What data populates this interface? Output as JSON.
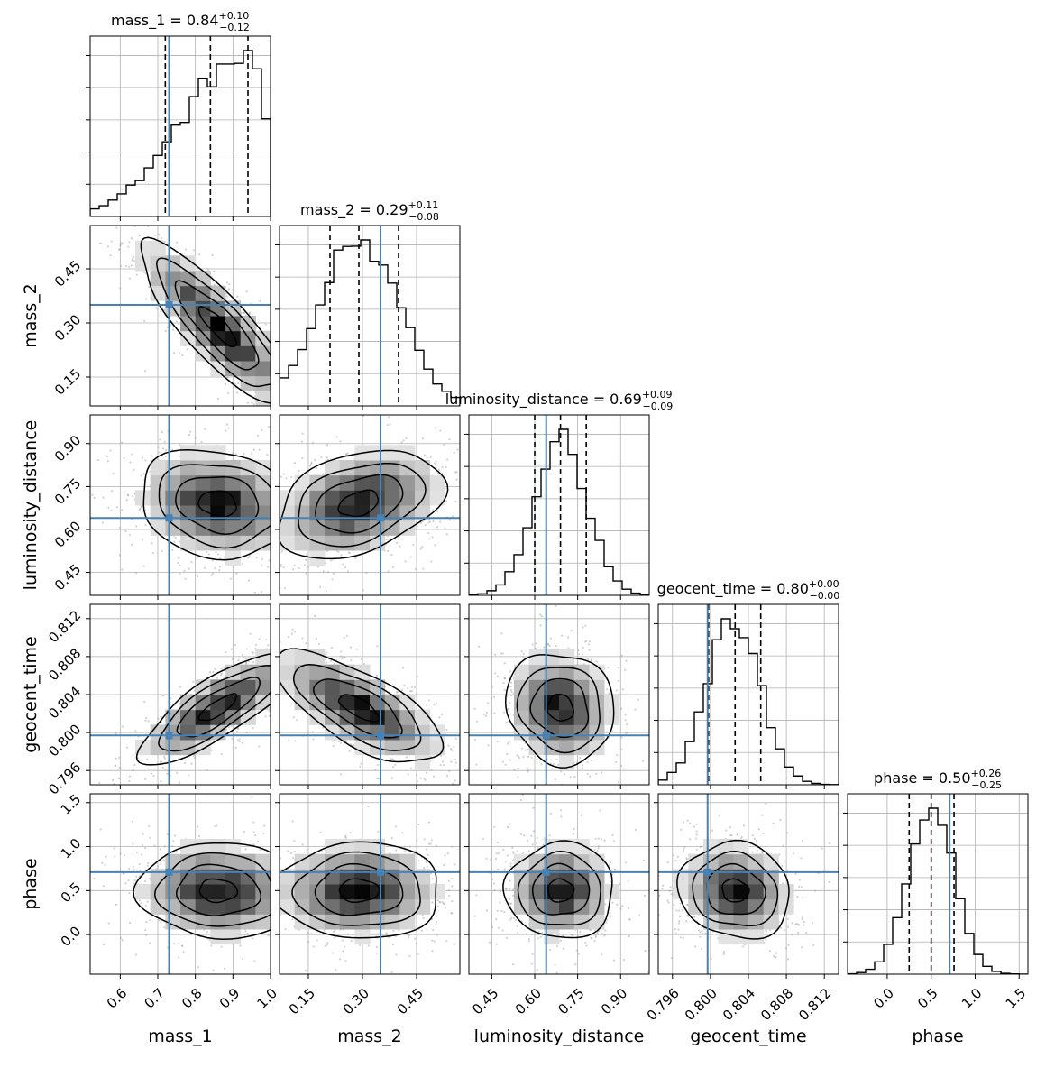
{
  "chart_data": {
    "type": "corner",
    "parameters": [
      {
        "name": "mass_1",
        "label": "mass_1",
        "title": {
          "prefix": "mass_1 = ",
          "median": "0.84",
          "plus": "+0.10",
          "minus": "−0.12"
        },
        "range": [
          0.52,
          1.0
        ],
        "ticks": [
          0.6,
          0.7,
          0.8,
          0.9,
          1.0
        ],
        "tick_labels": [
          "0.6",
          "0.7",
          "0.8",
          "0.9",
          "1.0"
        ],
        "quantiles": [
          0.72,
          0.84,
          0.94
        ],
        "truth": 0.73,
        "hist_peak": 0.94
      },
      {
        "name": "mass_2",
        "label": "mass_2",
        "title": {
          "prefix": "mass_2 = ",
          "median": "0.29",
          "plus": "+0.11",
          "minus": "−0.08"
        },
        "range": [
          0.07,
          0.57
        ],
        "ticks": [
          0.15,
          0.3,
          0.45
        ],
        "tick_labels": [
          "0.15",
          "0.30",
          "0.45"
        ],
        "quantiles": [
          0.21,
          0.29,
          0.4
        ],
        "truth": 0.35,
        "hist_peak": 0.29
      },
      {
        "name": "luminosity_distance",
        "label": "luminosity_distance",
        "title": {
          "prefix": "luminosity_distance = ",
          "median": "0.69",
          "plus": "+0.09",
          "minus": "−0.09"
        },
        "range": [
          0.37,
          1.0
        ],
        "ticks": [
          0.45,
          0.6,
          0.75,
          0.9
        ],
        "tick_labels": [
          "0.45",
          "0.60",
          "0.75",
          "0.90"
        ],
        "quantiles": [
          0.6,
          0.69,
          0.78
        ],
        "truth": 0.64,
        "hist_peak": 0.69
      },
      {
        "name": "geocent_time",
        "label": "geocent_time",
        "title": {
          "prefix": "geocent_time = ",
          "median": "0.80",
          "plus": "+0.00",
          "minus": "−0.00"
        },
        "range": [
          0.7945,
          0.8135
        ],
        "ticks": [
          0.796,
          0.8,
          0.804,
          0.808,
          0.812
        ],
        "tick_labels": [
          "0.796",
          "0.800",
          "0.804",
          "0.808",
          "0.812"
        ],
        "quantiles": [
          0.7998,
          0.8026,
          0.8053
        ],
        "truth": 0.7997,
        "hist_peak": 0.8024
      },
      {
        "name": "phase",
        "label": "phase",
        "title": {
          "prefix": "phase = ",
          "median": "0.50",
          "plus": "+0.26",
          "minus": "−0.25"
        },
        "range": [
          -0.45,
          1.6
        ],
        "ticks": [
          0.0,
          0.5,
          1.0,
          1.5
        ],
        "tick_labels": [
          "0.0",
          "0.5",
          "1.0",
          "1.5"
        ],
        "quantiles": [
          0.25,
          0.5,
          0.76
        ],
        "truth": 0.71,
        "hist_peak": 0.5
      }
    ],
    "truth_color": "#4682b4",
    "grid": true,
    "correlations": {
      "1-0": -0.85,
      "2-0": -0.15,
      "2-1": 0.35,
      "3-0": 0.8,
      "3-1": -0.7,
      "3-2": -0.1,
      "4-0": -0.05,
      "4-1": 0.0,
      "4-2": 0.0,
      "4-3": -0.1
    }
  }
}
